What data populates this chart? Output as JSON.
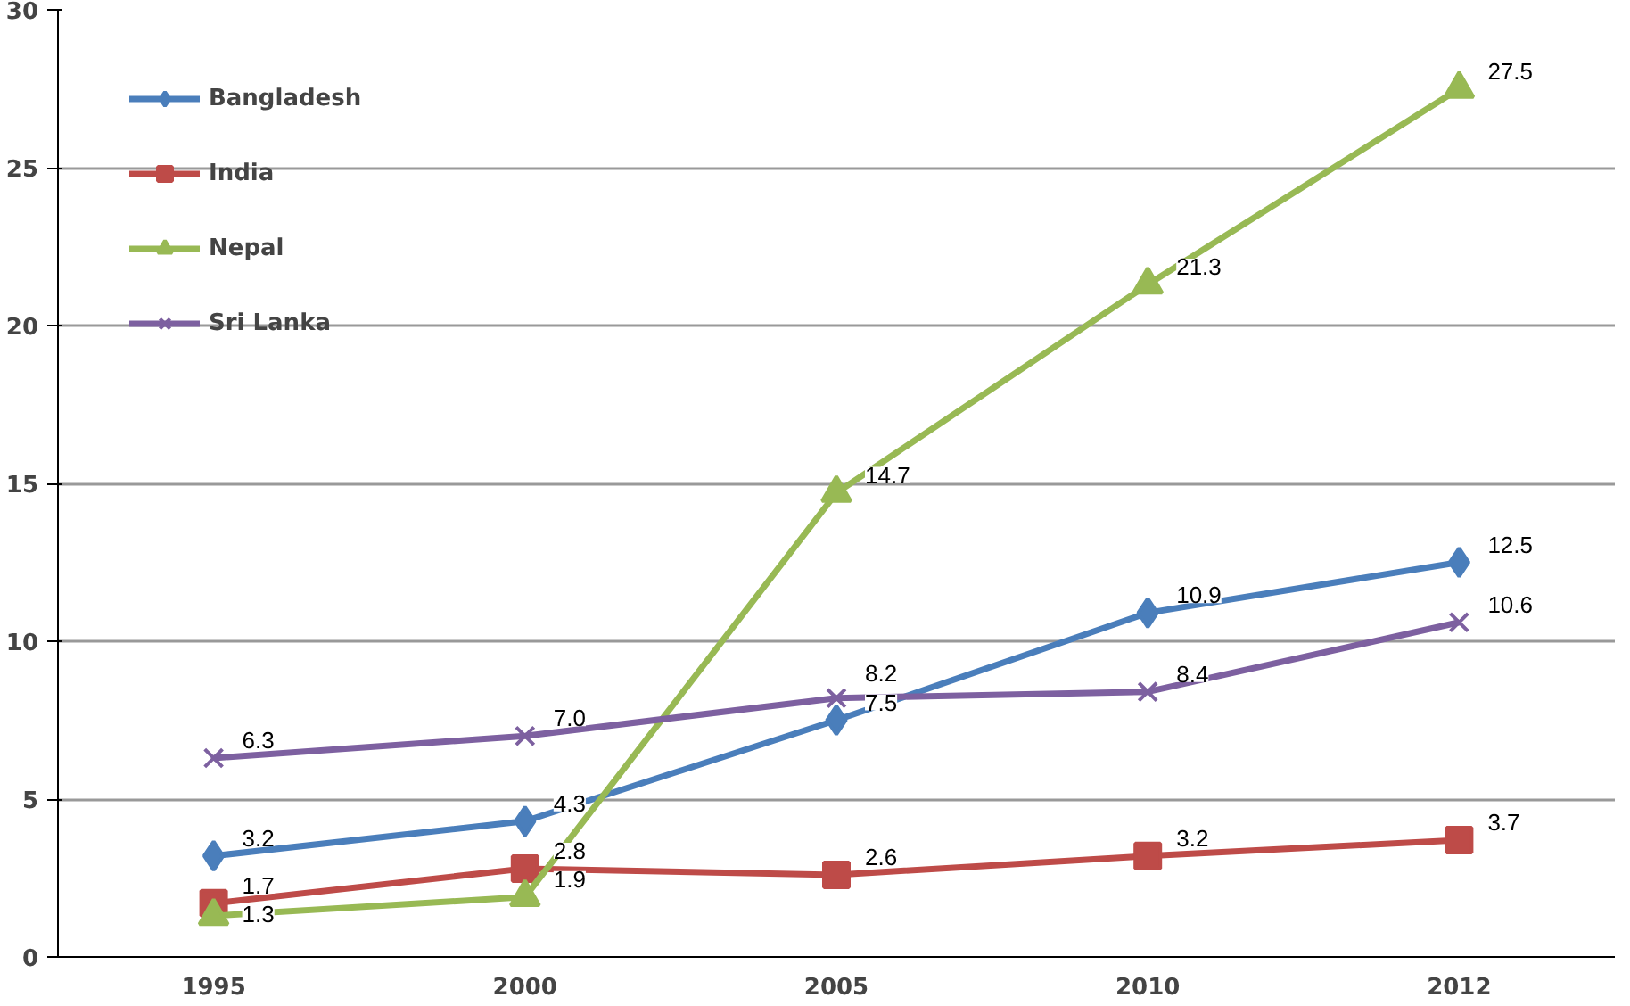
{
  "chart_data": {
    "type": "line",
    "categories": [
      "1995",
      "2000",
      "2005",
      "2010",
      "2012"
    ],
    "series": [
      {
        "name": "Bangladesh",
        "color": "#4a7ebb",
        "marker": "diamond",
        "values": [
          3.2,
          4.3,
          7.5,
          10.9,
          12.5
        ],
        "value_labels": [
          "3.2",
          "4.3",
          "7.5",
          "10.9",
          "12.5"
        ]
      },
      {
        "name": "India",
        "color": "#be4b48",
        "marker": "square",
        "values": [
          1.7,
          2.8,
          2.6,
          3.2,
          3.7
        ],
        "value_labels": [
          "1.7",
          "2.8",
          "2.6",
          "3.2",
          "3.7"
        ]
      },
      {
        "name": "Nepal",
        "color": "#98b954",
        "marker": "triangle",
        "values": [
          1.3,
          1.9,
          14.7,
          21.3,
          27.5
        ],
        "value_labels": [
          "1.3",
          "1.9",
          "14.7",
          "21.3",
          "27.5"
        ]
      },
      {
        "name": "Sri Lanka",
        "color": "#7d60a0",
        "marker": "cross",
        "values": [
          6.3,
          7.0,
          8.2,
          8.4,
          10.6
        ],
        "value_labels": [
          "6.3",
          "7.0",
          "8.2",
          "8.4",
          "10.6"
        ]
      }
    ],
    "ylim": [
      0,
      30
    ],
    "yticks": [
      0,
      5,
      10,
      15,
      20,
      25,
      30
    ],
    "grid": "y",
    "legend": "top left"
  }
}
